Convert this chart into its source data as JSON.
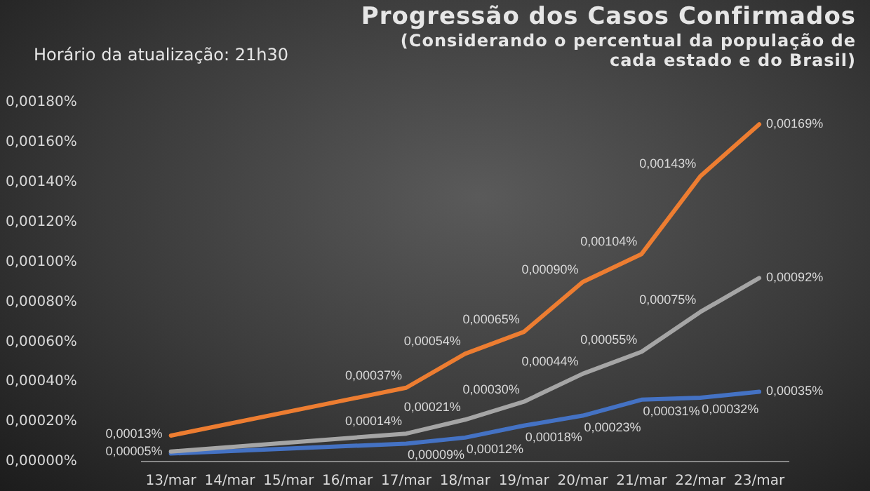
{
  "chart_data": {
    "type": "line",
    "title": "Progressão dos Casos Confirmados",
    "subtitle": "(Considerando o percentual da população de cada estado e do Brasil)",
    "annotations": [
      "Horário da atualização: 21h30"
    ],
    "categories": [
      "13/mar",
      "14/mar",
      "15/mar",
      "16/mar",
      "17/mar",
      "18/mar",
      "19/mar",
      "20/mar",
      "21/mar",
      "22/mar",
      "23/mar"
    ],
    "series": [
      {
        "color": "#ed7d31",
        "values": [
          0.00013,
          null,
          null,
          null,
          0.00037,
          0.00054,
          0.00065,
          0.0009,
          0.00104,
          0.00143,
          0.00169
        ],
        "value_labels": [
          "0,00013%",
          null,
          null,
          null,
          "0,00037%",
          "0,00054%",
          "0,00065%",
          "0,00090%",
          "0,00104%",
          "0,00143%",
          "0,00169%"
        ]
      },
      {
        "color": "#a5a5a5",
        "values": [
          5e-05,
          null,
          null,
          null,
          0.00014,
          0.00021,
          0.0003,
          0.00044,
          0.00055,
          0.00075,
          0.00092
        ],
        "value_labels": [
          "0,00005%",
          null,
          null,
          null,
          "0,00014%",
          "0,00021%",
          "0,00030%",
          "0,00044%",
          "0,00055%",
          "0,00075%",
          "0,00092%"
        ]
      },
      {
        "color": "#4472c4",
        "values": [
          4e-05,
          null,
          null,
          null,
          9e-05,
          0.00012,
          0.00018,
          0.00023,
          0.00031,
          0.00032,
          0.00035
        ],
        "value_labels": [
          null,
          null,
          null,
          null,
          "0,00009%",
          "0,00012%",
          "0,00018%",
          "0,00023%",
          "0,00031%",
          "0,00032%",
          "0,00035%"
        ]
      }
    ],
    "ylim": [
      0,
      0.0018
    ],
    "yticks": [
      {
        "value": 0,
        "label": "0,00000%"
      },
      {
        "value": 0.0002,
        "label": "0,00020%"
      },
      {
        "value": 0.0004,
        "label": "0,00040%"
      },
      {
        "value": 0.0006,
        "label": "0,00060%"
      },
      {
        "value": 0.0008,
        "label": "0,00080%"
      },
      {
        "value": 0.001,
        "label": "0,00100%"
      },
      {
        "value": 0.0012,
        "label": "0,00120%"
      },
      {
        "value": 0.0014,
        "label": "0,00140%"
      },
      {
        "value": 0.0016,
        "label": "0,00160%"
      },
      {
        "value": 0.0018,
        "label": "0,00180%"
      }
    ],
    "grid": false,
    "legend": false,
    "marker": "none",
    "line_style": "solid"
  }
}
